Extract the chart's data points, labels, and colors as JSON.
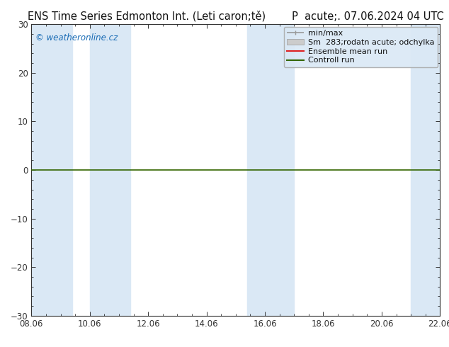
{
  "title_left": "ENS Time Series Edmonton Int. (Leti caron;tě)",
  "title_right": "P  acute;. 07.06.2024 04 UTC",
  "ylim": [
    -30,
    30
  ],
  "yticks": [
    -30,
    -20,
    -10,
    0,
    10,
    20,
    30
  ],
  "xtick_labels": [
    "08.06",
    "10.06",
    "12.06",
    "14.06",
    "16.06",
    "18.06",
    "20.06",
    "22.06"
  ],
  "xmin": 0,
  "xmax": 14,
  "shaded_bands": [
    [
      0.0,
      1.4
    ],
    [
      2.0,
      3.4
    ],
    [
      7.4,
      9.0
    ],
    [
      13.0,
      14.0
    ]
  ],
  "band_color": "#dae8f5",
  "background_color": "#ffffff",
  "plot_bg_color": "#ffffff",
  "watermark": "© weatheronline.cz",
  "watermark_color": "#1a6cb5",
  "zero_line_color": "#336600",
  "grid_color": "#bbbbbb",
  "axis_color": "#333333",
  "tick_color": "#333333",
  "font_size_title": 10.5,
  "font_size_tick": 8.5,
  "font_size_legend": 8.0,
  "font_size_watermark": 8.5,
  "legend_line1_color": "#999999",
  "legend_patch_color": "#cccccc",
  "legend_red": "#dd2222",
  "legend_green": "#336600"
}
